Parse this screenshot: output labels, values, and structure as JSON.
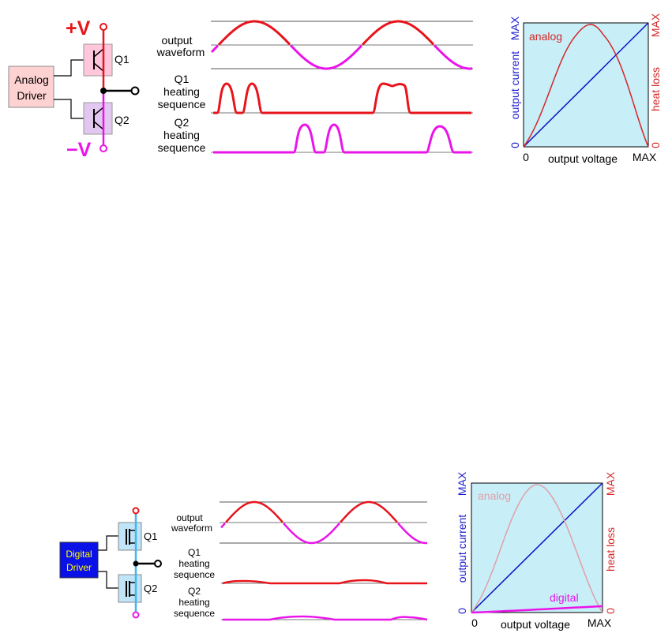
{
  "analog_panel": {
    "driver_line1": "Analog",
    "driver_line2": "Driver",
    "pos_rail": "+V",
    "neg_rail": "−V",
    "q1": "Q1",
    "q2": "Q2",
    "wave_label_1": "output",
    "wave_label_2": "waveform",
    "q1_heat_1": "Q1",
    "q1_heat_2": "heating",
    "q1_heat_3": "sequence",
    "q2_heat_1": "Q2",
    "q2_heat_2": "heating",
    "q2_heat_3": "sequence",
    "graph": {
      "y_left_label": "output current",
      "y_left_max": "MAX",
      "y_left_zero": "0",
      "y_right_label": "heat loss",
      "y_right_max": "MAX",
      "y_right_zero": "0",
      "x_label": "output voltage",
      "x_zero": "0",
      "x_max": "MAX",
      "curve_label": "analog"
    }
  },
  "digital_panel": {
    "driver_line1": "Digital",
    "driver_line2": "Driver",
    "q1": "Q1",
    "q2": "Q2",
    "wave_label_1": "output",
    "wave_label_2": "waveform",
    "q1_heat_1": "Q1",
    "q1_heat_2": "heating",
    "q1_heat_3": "sequence",
    "q2_heat_1": "Q2",
    "q2_heat_2": "heating",
    "q2_heat_3": "sequence",
    "graph": {
      "y_left_label": "output current",
      "y_left_max": "MAX",
      "y_left_zero": "0",
      "y_right_label": "heat loss",
      "y_right_max": "MAX",
      "y_right_zero": "0",
      "x_label": "output voltage",
      "x_zero": "0",
      "x_max": "MAX",
      "curve_label_analog": "analog",
      "curve_label_digital": "digital"
    }
  },
  "colors": {
    "positive": "#e8141c",
    "negative": "#ea14ea",
    "analog_driver_fill": "#ffd2d2",
    "digital_driver_fill": "#0a10e8",
    "digital_driver_text": "#ffff00",
    "graph_bg": "#c8eef8",
    "current_line": "#0a10c8",
    "q1_box_analog": "#ffc6dc",
    "q2_box_analog": "#e2c8f0",
    "fet_box": "#c0e4f8",
    "fet_rail": "#40b8f0"
  }
}
